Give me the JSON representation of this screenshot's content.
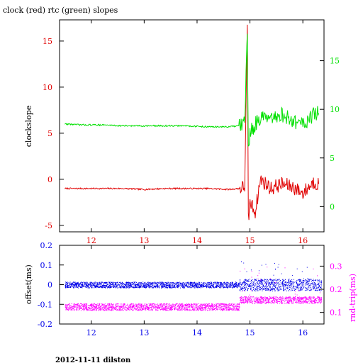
{
  "colors": {
    "red": "#e00000",
    "green": "#00e000",
    "blue": "#0000e8",
    "magenta": "#ff00ff",
    "axis": "#000000"
  },
  "header": {
    "title": "clock (red) rtc (green) slopes"
  },
  "footer": {
    "caption": "2012-11-11 dilston"
  },
  "chart_data": [
    {
      "type": "line",
      "title": "clock (red) rtc (green) slopes",
      "xlabel": "",
      "ylabel": "clockslope",
      "y2label": "",
      "xlim": [
        11.4,
        16.4
      ],
      "ylim": [
        -5.7,
        17.3
      ],
      "y2lim": [
        -2.6,
        19.2
      ],
      "x_ticks": [
        12,
        13,
        14,
        15,
        16
      ],
      "y_ticks": [
        -5,
        0,
        5,
        10,
        15
      ],
      "y2_ticks": [
        0,
        5,
        10,
        15
      ],
      "grid": false,
      "series": [
        {
          "axis": "left",
          "color": "red",
          "x": [
            11.5,
            11.8,
            12.2,
            12.6,
            13.0,
            13.4,
            13.8,
            14.2,
            14.6,
            14.8,
            14.9,
            14.95,
            14.97,
            15.0,
            15.1,
            15.2,
            15.4,
            15.6,
            15.8,
            16.0,
            16.2,
            16.3
          ],
          "y": [
            -1.0,
            -1.0,
            -1.0,
            -1.0,
            -1.1,
            -1.0,
            -1.0,
            -1.0,
            -1.1,
            -1.0,
            -0.8,
            16.2,
            -4.5,
            -2.5,
            -3.5,
            0.0,
            -1.0,
            -0.5,
            -0.8,
            -1.5,
            -0.3,
            -0.5
          ]
        },
        {
          "axis": "right",
          "color": "green",
          "x": [
            11.5,
            11.8,
            12.2,
            12.6,
            13.0,
            13.4,
            13.8,
            14.2,
            14.6,
            14.8,
            14.9,
            14.95,
            14.97,
            15.0,
            15.1,
            15.2,
            15.4,
            15.6,
            15.8,
            16.0,
            16.2,
            16.3
          ],
          "y": [
            8.5,
            8.4,
            8.4,
            8.3,
            8.3,
            8.3,
            8.3,
            8.2,
            8.2,
            8.3,
            8.5,
            17.8,
            6.0,
            7.5,
            8.5,
            9.2,
            8.8,
            9.5,
            8.8,
            8.5,
            9.4,
            9.6
          ]
        }
      ]
    },
    {
      "type": "scatter",
      "title": "",
      "xlabel": "",
      "ylabel": "offset(ms)",
      "y2label": "rnd-trip(ms)",
      "xlim": [
        11.4,
        16.4
      ],
      "ylim": [
        -0.2,
        0.2
      ],
      "y2lim": [
        0.05,
        0.39
      ],
      "x_ticks": [
        12,
        13,
        14,
        15,
        16
      ],
      "y_ticks": [
        -0.2,
        -0.1,
        0,
        0.1,
        0.2
      ],
      "y2_ticks": [
        0.1,
        0.2,
        0.3
      ],
      "grid": false,
      "series": [
        {
          "axis": "left",
          "color": "blue",
          "x_range": [
            11.5,
            16.35
          ],
          "y_center": 0.0,
          "y_spread_before": 0.015,
          "y_spread_after": 0.03,
          "step_x": 14.8
        },
        {
          "axis": "right",
          "color": "magenta",
          "x_range": [
            11.5,
            16.35
          ],
          "y_center_before": 0.125,
          "y_center_after": 0.155,
          "y_spread": 0.015,
          "step_x": 14.8
        }
      ]
    }
  ]
}
